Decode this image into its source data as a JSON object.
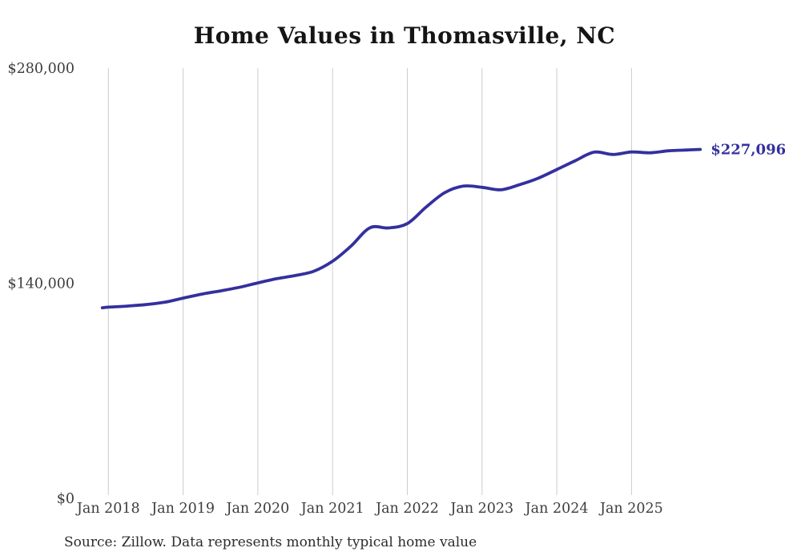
{
  "chart_data": {
    "type": "line",
    "title": "Home Values in Thomasville, NC",
    "source_note": "Source: Zillow. Data represents monthly typical home value",
    "end_label": "$227,096",
    "end_value": 227096,
    "x_range": [
      2017.92,
      2025.92
    ],
    "y_range": [
      0,
      280000
    ],
    "grid": "vertical-only",
    "legend": "none",
    "y_ticks": [
      {
        "v": 0,
        "label": "$0"
      },
      {
        "v": 140000,
        "label": "$140,000"
      },
      {
        "v": 280000,
        "label": "$280,000"
      }
    ],
    "x_ticks": [
      {
        "t": 2018,
        "label": "Jan 2018"
      },
      {
        "t": 2019,
        "label": "Jan 2019"
      },
      {
        "t": 2020,
        "label": "Jan 2020"
      },
      {
        "t": 2021,
        "label": "Jan 2021"
      },
      {
        "t": 2022,
        "label": "Jan 2022"
      },
      {
        "t": 2023,
        "label": "Jan 2023"
      },
      {
        "t": 2024,
        "label": "Jan 2024"
      },
      {
        "t": 2025,
        "label": "Jan 2025"
      }
    ],
    "series": [
      {
        "name": "Monthly typical home value (USD)",
        "points": [
          [
            2017.92,
            124000
          ],
          [
            2018.0,
            124400
          ],
          [
            2018.25,
            125100
          ],
          [
            2018.5,
            126100
          ],
          [
            2018.75,
            127600
          ],
          [
            2019.0,
            130300
          ],
          [
            2019.25,
            132900
          ],
          [
            2019.5,
            135000
          ],
          [
            2019.75,
            137300
          ],
          [
            2020.0,
            140200
          ],
          [
            2020.25,
            142900
          ],
          [
            2020.5,
            145000
          ],
          [
            2020.75,
            147800
          ],
          [
            2021.0,
            154300
          ],
          [
            2021.25,
            164300
          ],
          [
            2021.5,
            176100
          ],
          [
            2021.75,
            176000
          ],
          [
            2022.0,
            178800
          ],
          [
            2022.25,
            189500
          ],
          [
            2022.5,
            198900
          ],
          [
            2022.75,
            203200
          ],
          [
            2023.0,
            202400
          ],
          [
            2023.25,
            200800
          ],
          [
            2023.5,
            204100
          ],
          [
            2023.75,
            208300
          ],
          [
            2024.0,
            214000
          ],
          [
            2024.25,
            219800
          ],
          [
            2024.5,
            225300
          ],
          [
            2024.75,
            223800
          ],
          [
            2025.0,
            225400
          ],
          [
            2025.25,
            224900
          ],
          [
            2025.5,
            226200
          ],
          [
            2025.75,
            226700
          ],
          [
            2025.92,
            227096
          ]
        ]
      }
    ],
    "colors": {
      "line": "#34309E",
      "end_label": "#34309E",
      "grid": "#cccccc",
      "tick_label": "#3d3d3d",
      "title": "#151515",
      "source": "#2b2b2b",
      "background": "#ffffff"
    }
  }
}
